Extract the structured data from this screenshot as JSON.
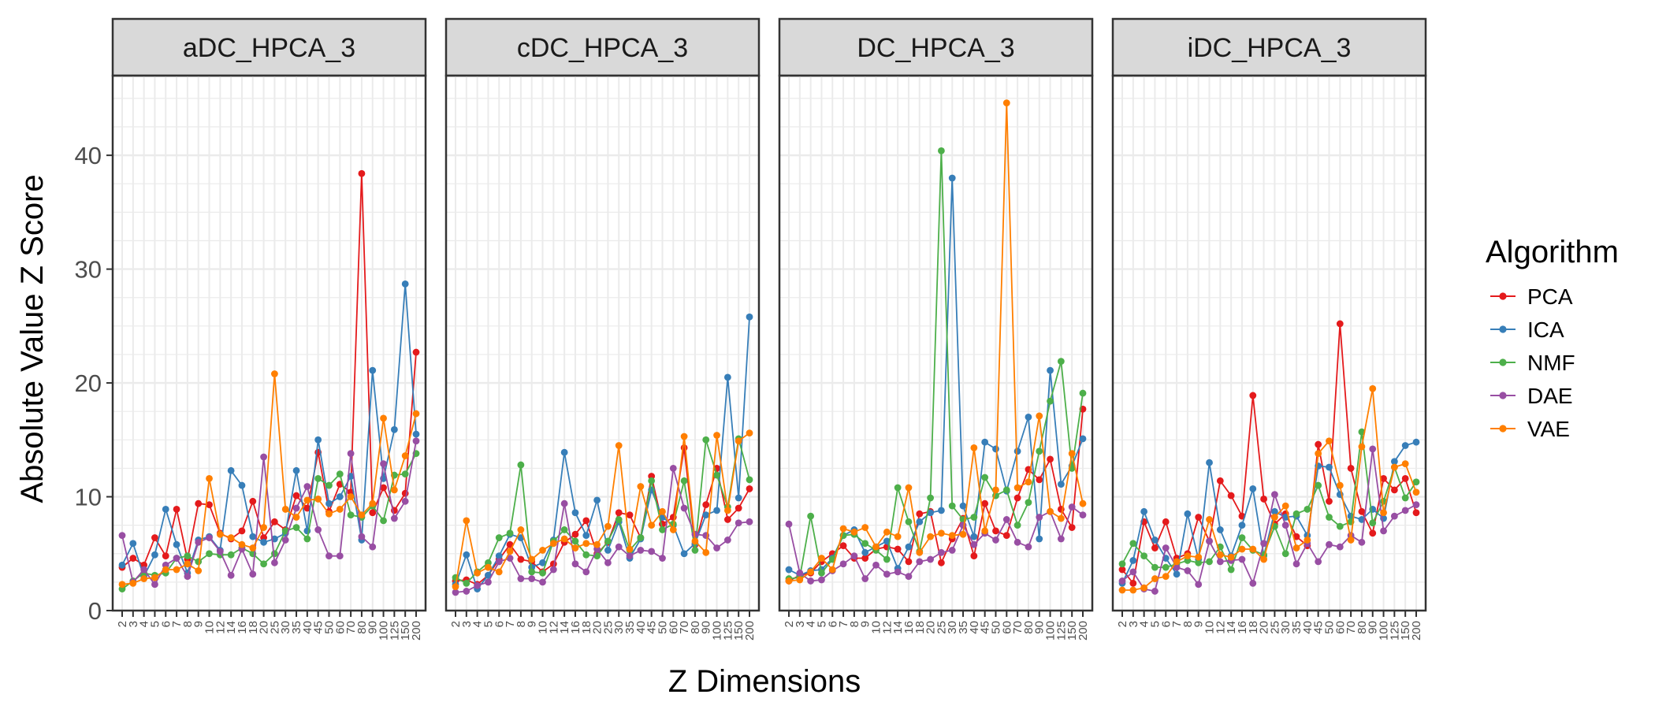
{
  "chart_data": {
    "type": "line",
    "xlabel": "Z Dimensions",
    "ylabel": "Absolute Value Z Score",
    "ylim": [
      0,
      47
    ],
    "y_ticks": [
      0,
      10,
      20,
      30,
      40
    ],
    "grid": true,
    "legend": {
      "title": "Algorithm",
      "position": "right"
    },
    "x": [
      "2",
      "3",
      "4",
      "5",
      "6",
      "7",
      "8",
      "9",
      "10",
      "12",
      "14",
      "16",
      "18",
      "20",
      "25",
      "30",
      "35",
      "40",
      "45",
      "50",
      "60",
      "70",
      "80",
      "90",
      "100",
      "125",
      "150",
      "200"
    ],
    "series_meta": [
      {
        "name": "PCA",
        "color": "#e41a1c"
      },
      {
        "name": "ICA",
        "color": "#377eb8"
      },
      {
        "name": "NMF",
        "color": "#4daf4a"
      },
      {
        "name": "DAE",
        "color": "#984ea3"
      },
      {
        "name": "VAE",
        "color": "#ff7f00"
      }
    ],
    "panels": [
      {
        "title": "aDC_HPCA_3",
        "series": [
          {
            "name": "PCA",
            "values": [
              3.8,
              4.6,
              4.0,
              6.4,
              4.8,
              8.9,
              4.5,
              9.4,
              9.3,
              6.8,
              6.3,
              7.0,
              9.6,
              6.4,
              7.8,
              7.1,
              10.1,
              9.0,
              13.9,
              8.7,
              11.1,
              10.4,
              38.4,
              8.6,
              10.8,
              8.8,
              10.3,
              22.7
            ]
          },
          {
            "name": "ICA",
            "values": [
              4.0,
              5.9,
              3.0,
              4.9,
              8.9,
              5.8,
              3.3,
              6.2,
              6.5,
              5.3,
              12.3,
              11.0,
              6.5,
              6.0,
              6.3,
              6.8,
              12.3,
              7.0,
              15.0,
              9.4,
              10.0,
              11.8,
              6.2,
              21.1,
              11.6,
              15.9,
              28.7,
              15.5
            ]
          },
          {
            "name": "NMF",
            "values": [
              1.9,
              2.6,
              3.3,
              3.1,
              3.3,
              4.6,
              4.8,
              4.3,
              5.0,
              4.9,
              4.9,
              5.5,
              5.0,
              4.1,
              5.0,
              7.0,
              7.3,
              6.3,
              11.6,
              11.0,
              12.0,
              8.4,
              8.2,
              9.2,
              7.9,
              11.9,
              12.0,
              13.8
            ]
          },
          {
            "name": "DAE",
            "values": [
              6.6,
              2.5,
              3.6,
              2.3,
              4.0,
              4.6,
              3.0,
              6.0,
              6.4,
              5.2,
              3.1,
              5.4,
              3.2,
              13.5,
              4.2,
              6.2,
              9.0,
              10.9,
              7.1,
              4.8,
              4.8,
              13.8,
              6.5,
              5.6,
              12.9,
              8.1,
              9.6,
              14.9
            ]
          },
          {
            "name": "VAE",
            "values": [
              2.3,
              2.4,
              2.8,
              2.9,
              3.6,
              3.6,
              4.1,
              3.5,
              11.6,
              6.7,
              6.4,
              5.8,
              5.5,
              7.3,
              20.8,
              8.9,
              8.2,
              9.7,
              9.8,
              8.5,
              8.9,
              10.0,
              8.4,
              9.4,
              16.9,
              10.6,
              13.6,
              17.3
            ]
          }
        ]
      },
      {
        "title": "cDC_HPCA_3",
        "series": [
          {
            "name": "PCA",
            "values": [
              2.6,
              2.7,
              2.3,
              3.1,
              4.5,
              5.8,
              4.5,
              4.3,
              3.4,
              4.1,
              6.0,
              6.7,
              7.9,
              5.0,
              6.0,
              8.6,
              8.4,
              6.4,
              11.8,
              7.6,
              8.2,
              14.3,
              5.8,
              9.3,
              12.5,
              8.0,
              9.0,
              10.7
            ]
          },
          {
            "name": "ICA",
            "values": [
              2.3,
              4.9,
              1.9,
              3.1,
              4.8,
              6.7,
              6.4,
              3.8,
              4.2,
              6.2,
              13.9,
              8.6,
              6.6,
              9.7,
              5.3,
              7.8,
              4.6,
              6.3,
              10.6,
              8.2,
              7.5,
              5.0,
              5.9,
              8.4,
              8.8,
              20.5,
              9.9,
              25.8
            ]
          },
          {
            "name": "NMF",
            "values": [
              2.9,
              2.4,
              3.4,
              4.2,
              6.4,
              6.8,
              12.8,
              3.4,
              3.3,
              6.1,
              7.1,
              6.1,
              4.9,
              4.8,
              6.1,
              8.0,
              5.3,
              6.4,
              11.4,
              7.1,
              7.6,
              11.4,
              5.3,
              15.0,
              11.9,
              9.1,
              15.1,
              11.5
            ]
          },
          {
            "name": "DAE",
            "values": [
              1.6,
              1.7,
              2.2,
              2.5,
              4.3,
              4.6,
              2.8,
              2.8,
              2.5,
              3.6,
              9.4,
              4.1,
              3.4,
              5.4,
              4.2,
              5.6,
              4.8,
              5.3,
              5.2,
              4.6,
              12.5,
              9.0,
              6.7,
              6.6,
              5.5,
              6.2,
              7.7,
              7.8
            ]
          },
          {
            "name": "VAE",
            "values": [
              2.1,
              7.9,
              3.3,
              3.8,
              3.4,
              5.2,
              7.1,
              4.5,
              5.3,
              5.9,
              6.3,
              5.5,
              5.9,
              5.8,
              7.4,
              14.5,
              5.4,
              10.9,
              7.5,
              8.7,
              7.1,
              15.3,
              6.1,
              5.1,
              15.4,
              8.8,
              14.9,
              15.6
            ]
          }
        ]
      },
      {
        "title": "DC_HPCA_3",
        "series": [
          {
            "name": "PCA",
            "values": [
              2.6,
              3.1,
              3.3,
              4.3,
              5.0,
              5.7,
              4.6,
              4.6,
              5.4,
              5.6,
              5.4,
              4.3,
              8.5,
              8.7,
              4.2,
              6.3,
              8.1,
              4.8,
              9.4,
              7.0,
              6.6,
              9.9,
              12.4,
              11.5,
              13.3,
              8.9,
              7.3,
              17.7
            ]
          },
          {
            "name": "ICA",
            "values": [
              3.6,
              3.1,
              3.5,
              3.6,
              4.6,
              6.6,
              7.1,
              5.1,
              5.6,
              6.1,
              3.7,
              5.6,
              7.8,
              8.6,
              8.8,
              38.0,
              9.2,
              6.5,
              14.8,
              14.2,
              10.5,
              14.0,
              17.0,
              6.3,
              21.1,
              11.1,
              12.7,
              15.1
            ]
          },
          {
            "name": "NMF",
            "values": [
              2.8,
              2.9,
              8.3,
              3.3,
              4.5,
              6.6,
              6.7,
              5.9,
              5.3,
              4.5,
              10.8,
              7.8,
              5.2,
              9.9,
              40.4,
              9.2,
              8.0,
              8.2,
              11.7,
              10.1,
              10.6,
              7.5,
              9.5,
              14.0,
              18.4,
              21.9,
              12.5,
              19.1
            ]
          },
          {
            "name": "DAE",
            "values": [
              7.6,
              3.3,
              2.6,
              2.7,
              3.5,
              4.1,
              4.8,
              2.8,
              4.0,
              3.2,
              3.4,
              3.0,
              4.3,
              4.5,
              5.1,
              5.3,
              7.5,
              5.8,
              6.8,
              6.2,
              8.0,
              6.0,
              5.6,
              8.2,
              8.7,
              6.3,
              9.1,
              8.4
            ]
          },
          {
            "name": "VAE",
            "values": [
              2.6,
              2.7,
              3.4,
              4.6,
              3.6,
              7.2,
              6.9,
              7.3,
              5.6,
              6.9,
              6.5,
              10.8,
              5.1,
              6.5,
              6.8,
              6.6,
              6.7,
              14.3,
              7.0,
              10.6,
              44.6,
              10.8,
              11.3,
              17.1,
              8.7,
              8.1,
              13.8,
              9.4
            ]
          }
        ]
      },
      {
        "title": "iDC_HPCA_3",
        "series": [
          {
            "name": "PCA",
            "values": [
              3.6,
              2.4,
              7.8,
              5.5,
              7.8,
              4.6,
              5.0,
              8.2,
              6.1,
              11.4,
              10.1,
              8.3,
              18.9,
              9.8,
              7.6,
              8.5,
              6.5,
              5.7,
              14.6,
              9.6,
              25.2,
              12.5,
              8.7,
              6.8,
              11.6,
              10.6,
              11.6,
              8.6
            ]
          },
          {
            "name": "ICA",
            "values": [
              2.4,
              4.4,
              8.7,
              6.2,
              4.6,
              3.2,
              8.5,
              4.5,
              13.0,
              7.1,
              4.8,
              7.5,
              10.7,
              4.8,
              8.7,
              8.2,
              8.3,
              6.6,
              12.7,
              12.6,
              10.2,
              8.3,
              8.0,
              8.9,
              8.1,
              13.1,
              14.5,
              14.8
            ]
          },
          {
            "name": "NMF",
            "values": [
              4.1,
              5.9,
              4.8,
              3.8,
              3.8,
              4.1,
              4.4,
              4.2,
              4.3,
              5.6,
              3.6,
              6.4,
              5.3,
              4.9,
              7.4,
              5.0,
              8.5,
              8.9,
              11.0,
              8.2,
              7.4,
              7.8,
              15.7,
              7.7,
              9.6,
              12.6,
              9.9,
              11.3
            ]
          },
          {
            "name": "DAE",
            "values": [
              2.6,
              3.4,
              1.9,
              1.7,
              5.5,
              3.8,
              3.5,
              2.3,
              6.1,
              4.3,
              4.4,
              4.5,
              2.4,
              5.9,
              10.2,
              7.5,
              4.1,
              5.9,
              4.3,
              5.8,
              5.6,
              6.6,
              6.0,
              14.2,
              7.0,
              8.3,
              8.8,
              9.3
            ]
          },
          {
            "name": "VAE",
            "values": [
              1.8,
              1.8,
              2.0,
              2.8,
              3.0,
              4.3,
              4.8,
              4.7,
              8.0,
              4.9,
              4.7,
              5.4,
              5.4,
              4.5,
              8.2,
              9.2,
              5.5,
              6.2,
              13.8,
              14.9,
              11.0,
              6.2,
              14.4,
              19.5,
              8.6,
              12.6,
              12.9,
              10.4
            ]
          }
        ]
      }
    ]
  }
}
